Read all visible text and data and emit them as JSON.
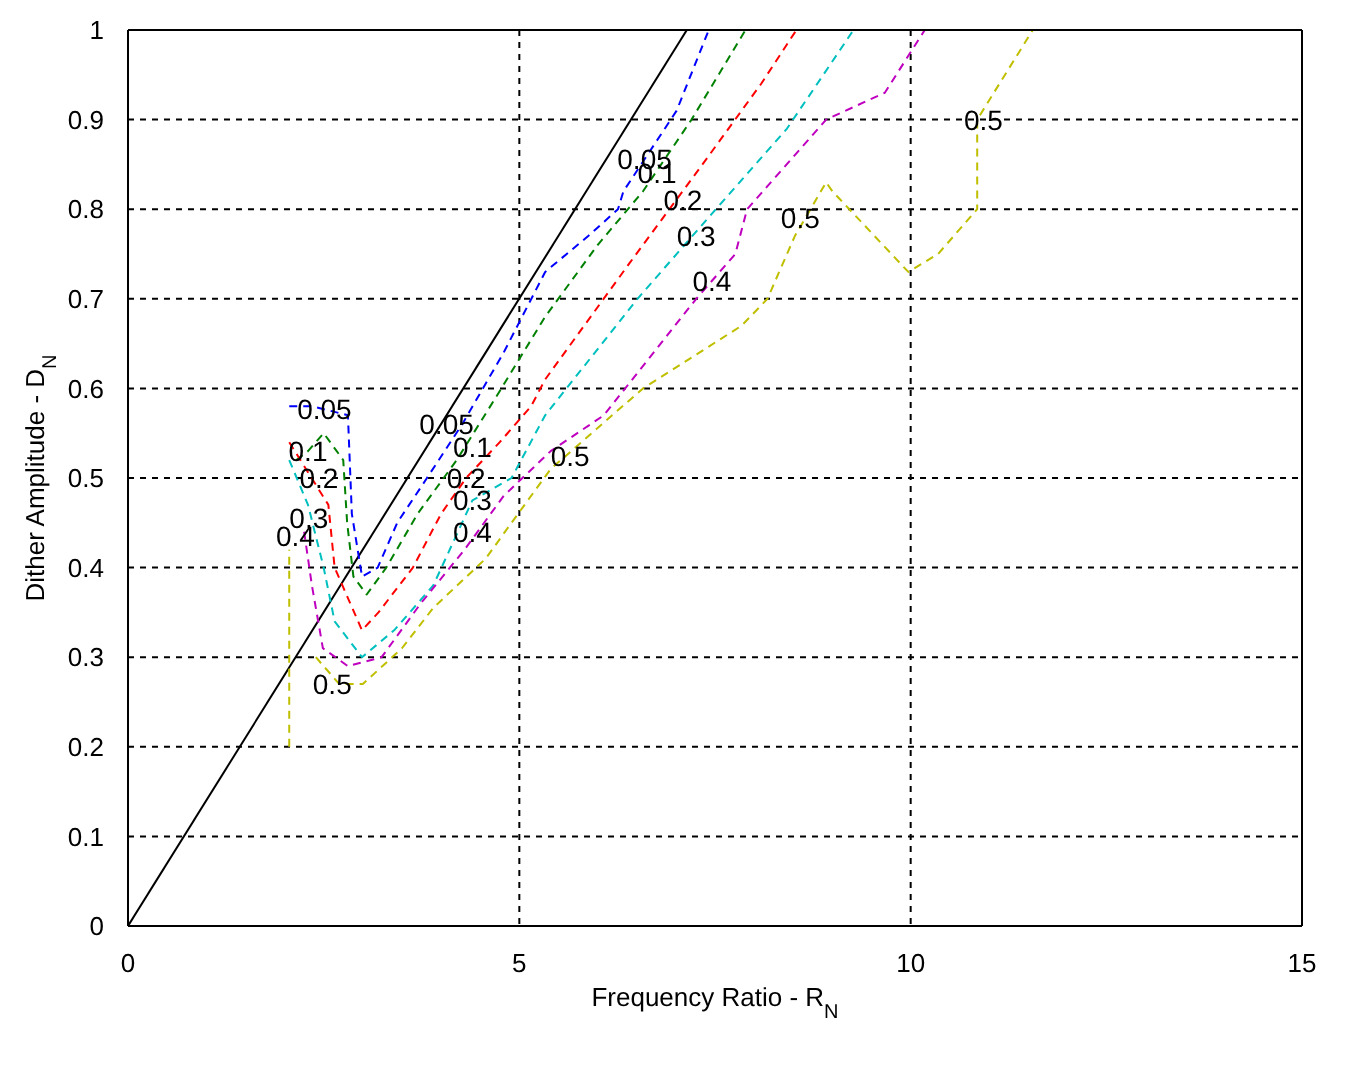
{
  "chart_data": {
    "type": "line",
    "xlabel": "Frequency Ratio - R$_{N}$",
    "ylabel": "Dither Amplitude - D$_{N}$",
    "xlim": [
      0,
      15
    ],
    "xticks": [
      0,
      5,
      10,
      15
    ],
    "ylim": [
      0,
      1
    ],
    "yticks": [
      0,
      0.1,
      0.2,
      0.3,
      0.4,
      0.5,
      0.6,
      0.7,
      0.8,
      0.9,
      1
    ],
    "grid": true,
    "line_style": "dashed",
    "series": [
      {
        "color": "#000000",
        "line_style": "solid",
        "x": [
          0,
          7.14
        ],
        "values": [
          0,
          1
        ]
      },
      {
        "color": "#0000ff",
        "x": [
          2.06,
          2.36,
          2.81,
          2.86,
          2.99,
          3.19,
          3.44,
          3.82,
          4.27,
          4.8,
          5.33,
          5.88,
          6.26,
          6.33,
          7.01,
          7.42
        ],
        "values": [
          0.58,
          0.58,
          0.57,
          0.46,
          0.39,
          0.4,
          0.45,
          0.5,
          0.56,
          0.64,
          0.73,
          0.77,
          0.8,
          0.82,
          0.91,
          1
        ]
      },
      {
        "color": "#008000",
        "x": [
          2.15,
          2.3,
          2.5,
          2.75,
          2.8,
          2.88,
          3.05,
          3.3,
          3.7,
          4.2,
          4.7,
          5.33,
          6.0,
          6.58,
          7.2,
          7.89
        ],
        "values": [
          0.52,
          0.53,
          0.55,
          0.52,
          0.45,
          0.39,
          0.37,
          0.4,
          0.46,
          0.52,
          0.59,
          0.68,
          0.76,
          0.82,
          0.9,
          1
        ]
      },
      {
        "color": "#ff0000",
        "x": [
          2.06,
          2.56,
          2.64,
          2.99,
          3.2,
          3.64,
          4.0,
          4.32,
          4.75,
          5.15,
          5.33,
          6.41,
          7.34,
          8.09,
          8.54
        ],
        "values": [
          0.54,
          0.47,
          0.4,
          0.33,
          0.35,
          0.4,
          0.46,
          0.5,
          0.54,
          0.58,
          0.61,
          0.74,
          0.85,
          0.94,
          1
        ]
      },
      {
        "color": "#00bfbf",
        "x": [
          2.06,
          2.3,
          2.5,
          2.64,
          2.99,
          3.4,
          3.9,
          4.4,
          4.9,
          5.33,
          6.51,
          7.51,
          8.42,
          9.27
        ],
        "values": [
          0.52,
          0.47,
          0.4,
          0.34,
          0.3,
          0.33,
          0.38,
          0.475,
          0.5,
          0.57,
          0.7,
          0.8,
          0.89,
          1
        ]
      },
      {
        "color": "#bf00bf",
        "x": [
          2.25,
          2.35,
          2.49,
          2.81,
          3.24,
          3.74,
          4.3,
          4.8,
          5.4,
          6.08,
          7.26,
          7.76,
          7.91,
          8.92,
          9.67,
          10.18
        ],
        "values": [
          0.44,
          0.38,
          0.31,
          0.29,
          0.3,
          0.36,
          0.42,
          0.48,
          0.53,
          0.57,
          0.7,
          0.75,
          0.8,
          0.9,
          0.93,
          1
        ]
      },
      {
        "color": "#bfbf00",
        "x": [
          2.06,
          2.06,
          2.2,
          2.4,
          2.7,
          3.0,
          3.5,
          3.9,
          4.57,
          4.9,
          5.4,
          6.58,
          7.84,
          8.17,
          8.52,
          8.92,
          9.0,
          9.97,
          10.35,
          10.85,
          10.85,
          11.56
        ],
        "values": [
          0.2,
          0.42,
          null,
          0.3,
          0.27,
          0.27,
          0.31,
          0.355,
          0.41,
          0.45,
          0.51,
          0.6,
          0.67,
          0.7,
          0.77,
          0.83,
          0.82,
          0.73,
          0.75,
          0.8,
          0.9,
          1
        ]
      }
    ],
    "annotations": [
      {
        "text": "0.05",
        "x": 6.6,
        "y": 0.856
      },
      {
        "text": "0.1",
        "x": 6.76,
        "y": 0.84
      },
      {
        "text": "0.2",
        "x": 7.09,
        "y": 0.81
      },
      {
        "text": "0.3",
        "x": 7.26,
        "y": 0.77
      },
      {
        "text": "0.4",
        "x": 7.46,
        "y": 0.72
      },
      {
        "text": "0.5",
        "x": 8.59,
        "y": 0.79
      },
      {
        "text": "0.5",
        "x": 10.93,
        "y": 0.9
      },
      {
        "text": "0.05",
        "x": 4.07,
        "y": 0.56
      },
      {
        "text": "0.1",
        "x": 4.4,
        "y": 0.535
      },
      {
        "text": "0.2",
        "x": 4.32,
        "y": 0.5
      },
      {
        "text": "0.3",
        "x": 4.4,
        "y": 0.475
      },
      {
        "text": "0.4",
        "x": 4.4,
        "y": 0.44
      },
      {
        "text": "0.5",
        "x": 5.65,
        "y": 0.525
      },
      {
        "text": "0.05",
        "x": 2.51,
        "y": 0.577
      },
      {
        "text": "0.1",
        "x": 2.3,
        "y": 0.53
      },
      {
        "text": "0.2",
        "x": 2.44,
        "y": 0.5
      },
      {
        "text": "0.3",
        "x": 2.31,
        "y": 0.455
      },
      {
        "text": "0.4",
        "x": 2.14,
        "y": 0.435
      },
      {
        "text": "0.5",
        "x": 2.61,
        "y": 0.27
      }
    ]
  }
}
